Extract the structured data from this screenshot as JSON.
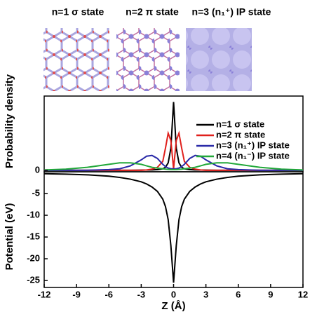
{
  "images": [
    {
      "title": "n=1 σ state"
    },
    {
      "title": "n=2 π state"
    },
    {
      "title": "n=3 (n₁⁺) IP state"
    }
  ],
  "chart_data": [
    {
      "type": "line",
      "ylabel": "Probability density",
      "x": [
        -12,
        -10,
        -8,
        -6,
        -5,
        -4,
        -3,
        -2.5,
        -2,
        -1.5,
        -1,
        -0.75,
        -0.5,
        -0.25,
        0,
        0.25,
        0.5,
        0.75,
        1,
        1.5,
        2,
        2.5,
        3,
        4,
        5,
        6,
        8,
        10,
        12
      ],
      "xlim": [
        -12,
        12
      ],
      "ylim": [
        -0.02,
        1
      ],
      "yticks": [
        0
      ],
      "legend": "upper right",
      "series": [
        {
          "name": "n=1 σ state",
          "color": "#000000",
          "values": [
            0,
            0,
            0,
            0,
            0,
            0,
            0.002,
            0.003,
            0.005,
            0.01,
            0.02,
            0.04,
            0.1,
            0.3,
            0.92,
            0.3,
            0.1,
            0.04,
            0.02,
            0.01,
            0.005,
            0.003,
            0.002,
            0,
            0,
            0,
            0,
            0,
            0
          ]
        },
        {
          "name": "n=2 π state",
          "color": "#e0201c",
          "values": [
            0,
            0,
            0,
            0,
            0,
            0,
            0,
            0.005,
            0.015,
            0.04,
            0.12,
            0.3,
            0.5,
            0.4,
            0.02,
            0.4,
            0.5,
            0.3,
            0.12,
            0.04,
            0.015,
            0.005,
            0,
            0,
            0,
            0,
            0,
            0,
            0
          ]
        },
        {
          "name": "n=3 (n₁⁺) IP state",
          "color": "#2a2aa8",
          "values": [
            0,
            0,
            0,
            0.01,
            0.02,
            0.06,
            0.14,
            0.19,
            0.2,
            0.16,
            0.08,
            0.05,
            0.03,
            0.02,
            0.02,
            0.02,
            0.03,
            0.05,
            0.08,
            0.16,
            0.2,
            0.19,
            0.14,
            0.06,
            0.02,
            0.01,
            0,
            0,
            0
          ]
        },
        {
          "name": "n=4 (n₁⁻) IP state",
          "color": "#22a83a",
          "values": [
            0.005,
            0.015,
            0.04,
            0.08,
            0.1,
            0.1,
            0.08,
            0.06,
            0.04,
            0.03,
            0.02,
            0.015,
            0.012,
            0.01,
            0.01,
            0.01,
            0.012,
            0.015,
            0.02,
            0.03,
            0.04,
            0.06,
            0.08,
            0.1,
            0.1,
            0.08,
            0.04,
            0.015,
            0.005
          ]
        }
      ]
    },
    {
      "type": "line",
      "ylabel": "Potential (eV)",
      "xlabel": "Z (Å)",
      "x": [
        -12,
        -10,
        -8,
        -6,
        -5,
        -4,
        -3,
        -2.5,
        -2,
        -1.5,
        -1,
        -0.75,
        -0.5,
        -0.25,
        0,
        0.25,
        0.5,
        0.75,
        1,
        1.5,
        2,
        2.5,
        3,
        4,
        5,
        6,
        8,
        10,
        12
      ],
      "xlim": [
        -12,
        12
      ],
      "xticks": [
        -12,
        -9,
        -6,
        -3,
        0,
        3,
        6,
        9,
        12
      ],
      "ylim": [
        -26.6,
        0
      ],
      "yticks": [
        -5,
        -10,
        -15,
        -20,
        -25
      ],
      "series": [
        {
          "color": "#000000",
          "values": [
            -0.45,
            -0.55,
            -0.7,
            -1,
            -1.3,
            -1.7,
            -2.3,
            -2.8,
            -3.5,
            -4.5,
            -6.3,
            -8,
            -11,
            -17,
            -25.5,
            -17,
            -11,
            -8,
            -6.3,
            -4.5,
            -3.5,
            -2.8,
            -2.3,
            -1.7,
            -1.3,
            -1,
            -0.7,
            -0.55,
            -0.45
          ]
        }
      ]
    }
  ]
}
